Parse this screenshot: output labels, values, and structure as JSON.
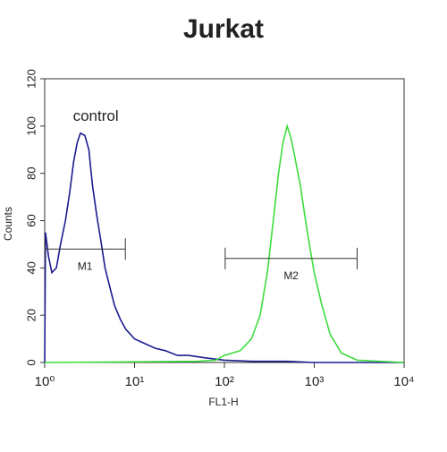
{
  "chart_data": {
    "type": "line",
    "title": "Jurkat",
    "xlabel": "FL1-H",
    "ylabel": "Counts",
    "xscale": "log",
    "xlim": [
      1,
      10000
    ],
    "ylim": [
      0,
      120
    ],
    "xticks": [
      {
        "value": 1,
        "label": "10⁰"
      },
      {
        "value": 10,
        "label": "10¹"
      },
      {
        "value": 100,
        "label": "10²"
      },
      {
        "value": 1000,
        "label": "10³"
      },
      {
        "value": 10000,
        "label": "10⁴"
      }
    ],
    "yticks": [
      0,
      20,
      40,
      60,
      80,
      100,
      120
    ],
    "series": [
      {
        "name": "control",
        "color": "#1c1c8f",
        "x": [
          1,
          1.02,
          1.1,
          1.2,
          1.35,
          1.5,
          1.7,
          1.9,
          2.1,
          2.3,
          2.5,
          2.8,
          3.1,
          3.4,
          3.8,
          4.2,
          4.7,
          5.3,
          6,
          7,
          8,
          10,
          13,
          17,
          22,
          30,
          40,
          60,
          100,
          200,
          500,
          1000,
          10000
        ],
        "values": [
          0,
          55,
          45,
          38,
          40,
          50,
          60,
          72,
          85,
          93,
          97,
          96,
          90,
          75,
          62,
          52,
          40,
          32,
          24,
          18,
          14,
          10,
          8,
          6,
          5,
          3,
          3,
          2,
          1,
          0.5,
          0.5,
          0,
          0
        ]
      },
      {
        "color": "#3ddc3d",
        "x": [
          1,
          50,
          80,
          100,
          150,
          200,
          250,
          300,
          350,
          400,
          450,
          500,
          550,
          600,
          700,
          800,
          900,
          1000,
          1200,
          1500,
          2000,
          3000,
          10000
        ],
        "values": [
          0,
          0.5,
          1,
          3,
          5,
          10,
          20,
          38,
          60,
          80,
          93,
          100,
          95,
          88,
          75,
          60,
          48,
          38,
          25,
          12,
          4,
          1,
          0
        ]
      }
    ],
    "annotations": [
      {
        "text": "control",
        "x": 3.7,
        "y": 104
      }
    ],
    "markers": [
      {
        "label": "M1",
        "range": [
          1,
          7.9
        ],
        "y": 48
      },
      {
        "label": "M2",
        "range": [
          102,
          3000
        ],
        "y": 44
      }
    ]
  }
}
